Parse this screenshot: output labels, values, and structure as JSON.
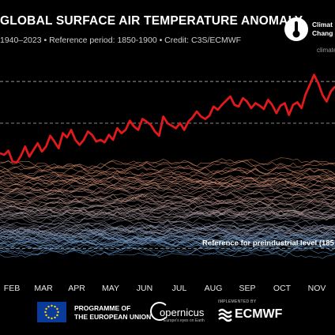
{
  "header": {
    "title": "GLOBAL SURFACE AIR TEMPERATURE ANOMALY",
    "subtitle": "1940–2023 • Reference period: 1850-1900 • Credit: C3S/ECMWF"
  },
  "brand": {
    "line1": "Climat",
    "line2": "Chang",
    "url": "climate",
    "icon": "thermometer-globe-icon"
  },
  "footer": {
    "eu_line1": "PROGRAMME OF",
    "eu_line2": "THE EUROPEAN UNION",
    "copernicus": "opernicus",
    "copernicus_sub": "Europe's eyes on Earth",
    "implemented_by": "IMPLEMENTED BY",
    "ecmwf": "ECMWF"
  },
  "colors": {
    "background": "#000000",
    "highlight": "#e0191b",
    "cold": "#5a9ad8",
    "warm": "#e8916a"
  },
  "chart_data": {
    "type": "line",
    "title": "GLOBAL SURFACE AIR TEMPERATURE ANOMALY",
    "x_tick_labels": [
      "FEB",
      "MAR",
      "APR",
      "MAY",
      "JUN",
      "JUL",
      "AUG",
      "SEP",
      "OCT",
      "NOV"
    ],
    "reference_label": "Reference for preindustrial level (185",
    "reference_lines": [
      {
        "value": 0.0,
        "style": "dashed"
      },
      {
        "value": 1.5,
        "style": "dashed"
      },
      {
        "value": 2.0,
        "style": "dashed"
      }
    ],
    "ylim": [
      -0.3,
      2.2
    ],
    "background_years": [
      1940,
      2022
    ],
    "grid": false,
    "highlight_series": {
      "name": "2023",
      "color": "#e0191b",
      "values": [
        1.14,
        1.12,
        1.17,
        1.04,
        1.03,
        1.11,
        1.22,
        1.1,
        1.18,
        1.26,
        1.16,
        1.22,
        1.35,
        1.28,
        1.2,
        1.38,
        1.33,
        1.42,
        1.3,
        1.24,
        1.3,
        1.4,
        1.36,
        1.28,
        1.3,
        1.27,
        1.36,
        1.3,
        1.44,
        1.38,
        1.42,
        1.53,
        1.46,
        1.42,
        1.55,
        1.52,
        1.48,
        1.4,
        1.35,
        1.58,
        1.5,
        1.47,
        1.44,
        1.5,
        1.42,
        1.52,
        1.57,
        1.64,
        1.58,
        1.55,
        1.59,
        1.7,
        1.66,
        1.72,
        1.77,
        1.82,
        1.72,
        1.7,
        1.8,
        1.76,
        1.68,
        1.74,
        1.71,
        1.67,
        1.78,
        1.72,
        1.62,
        1.71,
        1.74,
        1.6,
        1.72,
        1.75,
        1.68,
        1.85,
        1.96,
        2.08,
        1.98,
        1.84,
        1.76,
        1.88,
        1.94
      ]
    }
  }
}
